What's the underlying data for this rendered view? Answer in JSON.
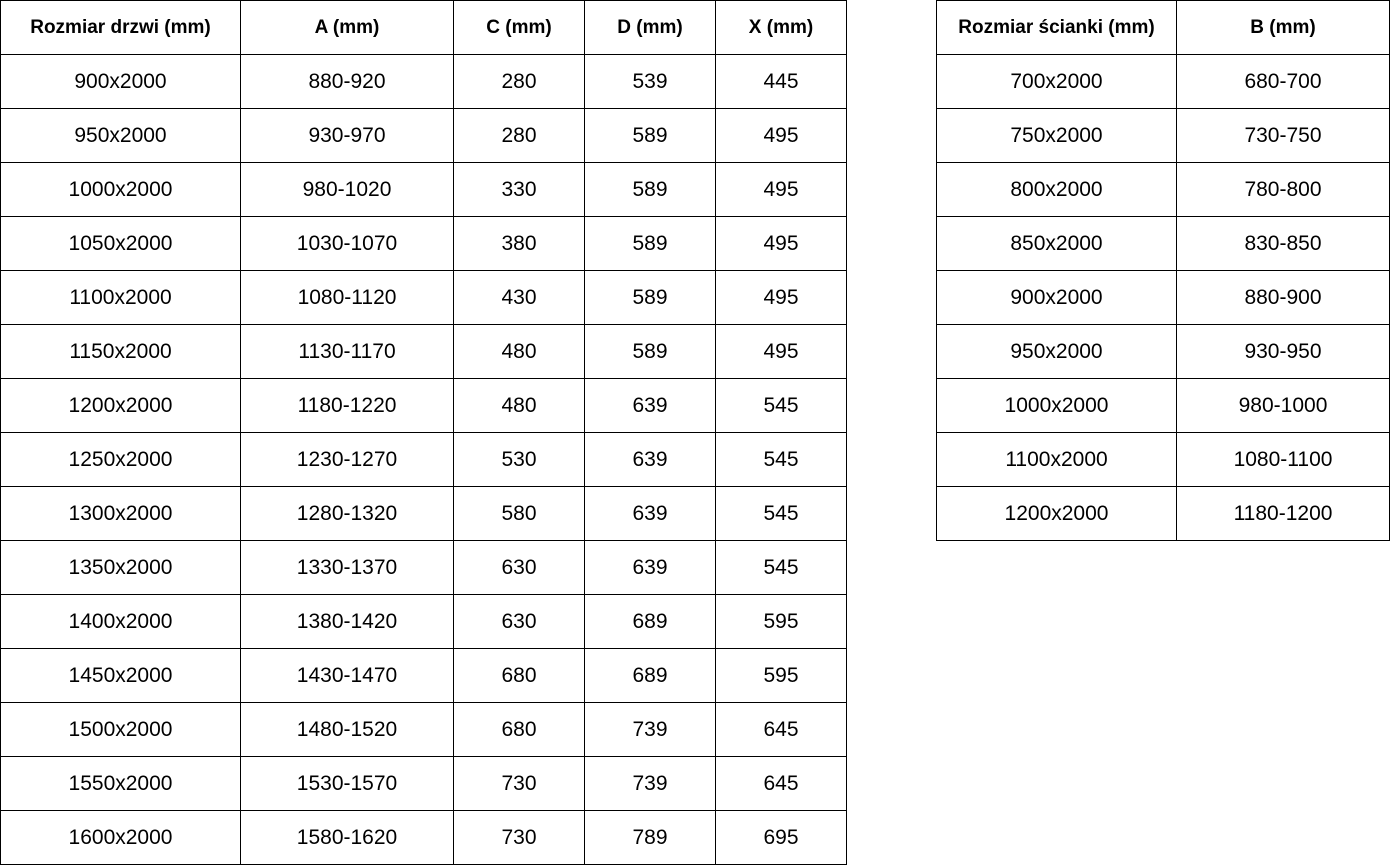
{
  "door_table": {
    "headers": [
      "Rozmiar drzwi (mm)",
      "A (mm)",
      "C (mm)",
      "D (mm)",
      "X (mm)"
    ],
    "rows": [
      [
        "900x2000",
        "880-920",
        "280",
        "539",
        "445"
      ],
      [
        "950x2000",
        "930-970",
        "280",
        "589",
        "495"
      ],
      [
        "1000x2000",
        "980-1020",
        "330",
        "589",
        "495"
      ],
      [
        "1050x2000",
        "1030-1070",
        "380",
        "589",
        "495"
      ],
      [
        "1100x2000",
        "1080-1120",
        "430",
        "589",
        "495"
      ],
      [
        "1150x2000",
        "1130-1170",
        "480",
        "589",
        "495"
      ],
      [
        "1200x2000",
        "1180-1220",
        "480",
        "639",
        "545"
      ],
      [
        "1250x2000",
        "1230-1270",
        "530",
        "639",
        "545"
      ],
      [
        "1300x2000",
        "1280-1320",
        "580",
        "639",
        "545"
      ],
      [
        "1350x2000",
        "1330-1370",
        "630",
        "639",
        "545"
      ],
      [
        "1400x2000",
        "1380-1420",
        "630",
        "689",
        "595"
      ],
      [
        "1450x2000",
        "1430-1470",
        "680",
        "689",
        "595"
      ],
      [
        "1500x2000",
        "1480-1520",
        "680",
        "739",
        "645"
      ],
      [
        "1550x2000",
        "1530-1570",
        "730",
        "739",
        "645"
      ],
      [
        "1600x2000",
        "1580-1620",
        "730",
        "789",
        "695"
      ]
    ]
  },
  "wall_table": {
    "headers": [
      "Rozmiar ścianki (mm)",
      "B (mm)"
    ],
    "rows": [
      [
        "700x2000",
        "680-700"
      ],
      [
        "750x2000",
        "730-750"
      ],
      [
        "800x2000",
        "780-800"
      ],
      [
        "850x2000",
        "830-850"
      ],
      [
        "900x2000",
        "880-900"
      ],
      [
        "950x2000",
        "930-950"
      ],
      [
        "1000x2000",
        "980-1000"
      ],
      [
        "1100x2000",
        "1080-1100"
      ],
      [
        "1200x2000",
        "1180-1200"
      ]
    ]
  }
}
